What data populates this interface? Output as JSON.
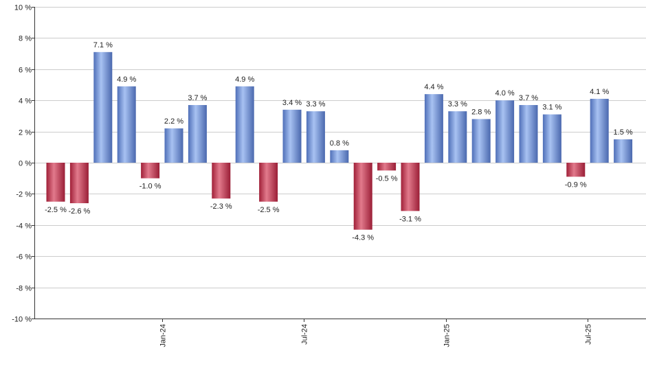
{
  "chart_data": {
    "type": "bar",
    "title": "",
    "xlabel": "",
    "ylabel": "",
    "ylim": [
      -10,
      10
    ],
    "yticks": [
      10,
      8,
      6,
      4,
      2,
      0,
      -2,
      -4,
      -6,
      -8,
      -10
    ],
    "ytick_labels": [
      "10 %",
      "8 %",
      "6 %",
      "4 %",
      "2 %",
      "0 %",
      "-2 %",
      "-4 %",
      "-6 %",
      "-8 %",
      "-10 %"
    ],
    "grid": true,
    "legend": "none",
    "values": [
      -2.5,
      -2.6,
      7.1,
      4.9,
      -1.0,
      2.2,
      3.7,
      -2.3,
      4.9,
      -2.5,
      3.4,
      3.3,
      0.8,
      -4.3,
      -0.5,
      -3.1,
      4.4,
      3.3,
      2.8,
      4.0,
      3.7,
      3.1,
      -0.9,
      4.1,
      1.5
    ],
    "data_labels": [
      "-2.5 %",
      "-2.6 %",
      "7.1 %",
      "4.9 %",
      "-1.0 %",
      "2.2 %",
      "3.7 %",
      "-2.3 %",
      "4.9 %",
      "-2.5 %",
      "3.4 %",
      "3.3 %",
      "0.8 %",
      "-4.3 %",
      "-0.5 %",
      "-3.1 %",
      "4.4 %",
      "3.3 %",
      "2.8 %",
      "4.0 %",
      "3.7 %",
      "3.1 %",
      "-0.9 %",
      "4.1 %",
      "1.5 %"
    ],
    "x_tick_labels": [
      {
        "index": 4.5,
        "label": "Jan-24"
      },
      {
        "index": 10.5,
        "label": "Jul-24"
      },
      {
        "index": 16.5,
        "label": "Jan-25"
      },
      {
        "index": 22.5,
        "label": "Jul-25"
      }
    ],
    "colors": {
      "positive": "#7f9ee6",
      "negative": "#cf4860",
      "grid": "#cccccc",
      "axis": "#333333"
    }
  }
}
